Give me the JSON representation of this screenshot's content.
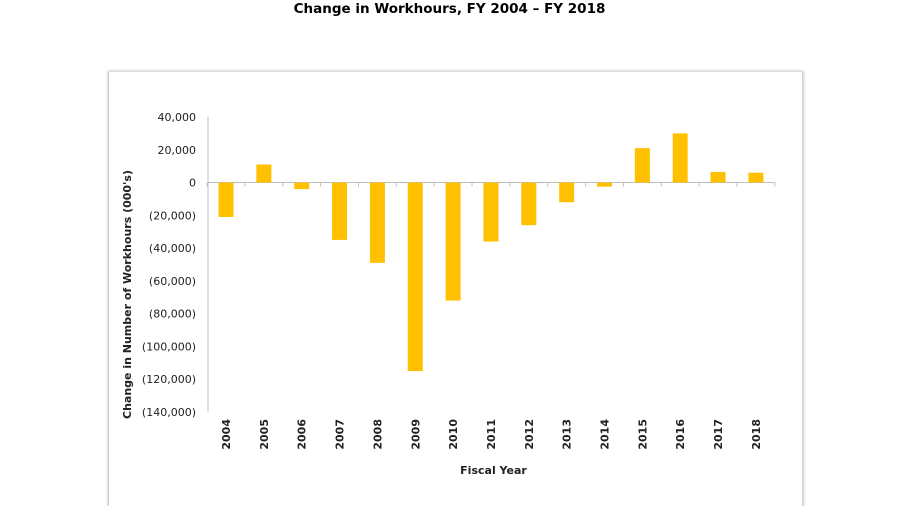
{
  "title": "Change in Workhours, FY 2004 – FY 2018",
  "chart_data": {
    "type": "bar",
    "title": "Change in Workhours, FY 2004 – FY 2018",
    "xlabel": "Fiscal Year",
    "ylabel": "Change in Number of Workhours (000's)",
    "categories": [
      "2004",
      "2005",
      "2006",
      "2007",
      "2008",
      "2009",
      "2010",
      "2011",
      "2012",
      "2013",
      "2014",
      "2015",
      "2016",
      "2017",
      "2018"
    ],
    "values": [
      -21000,
      11000,
      -4000,
      -35000,
      -49000,
      -115000,
      -72000,
      -36000,
      -26000,
      -12000,
      -2500,
      21000,
      30000,
      6500,
      6000
    ],
    "ylim": [
      -140000,
      40000
    ],
    "yticks": [
      40000,
      20000,
      0,
      -20000,
      -40000,
      -60000,
      -80000,
      -100000,
      -120000,
      -140000
    ],
    "ytick_labels": [
      "40,000",
      "20,000",
      "0",
      "(20,000)",
      "(40,000)",
      "(60,000)",
      "(80,000)",
      "(100,000)",
      "(120,000)",
      "(140,000)"
    ],
    "bar_color": "#FFC000",
    "grid": false,
    "legend": "none"
  }
}
